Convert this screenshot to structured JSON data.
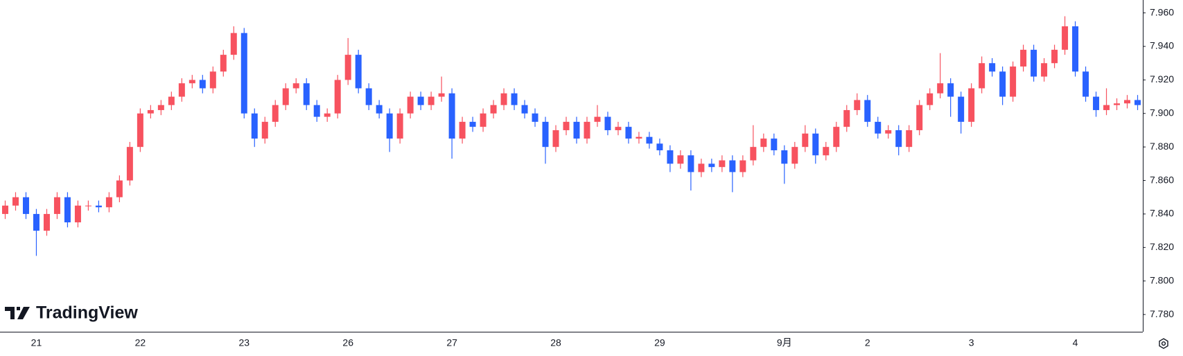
{
  "chart_data": {
    "type": "candlestick",
    "watermark": "TradingView",
    "up_color": "#f7525f",
    "down_color": "#2962ff",
    "ylim": [
      7.7697,
      7.9677
    ],
    "yticks": [
      {
        "value": 7.78,
        "label": "7.780"
      },
      {
        "value": 7.8,
        "label": "7.800"
      },
      {
        "value": 7.82,
        "label": "7.820"
      },
      {
        "value": 7.84,
        "label": "7.840"
      },
      {
        "value": 7.86,
        "label": "7.860"
      },
      {
        "value": 7.88,
        "label": "7.880"
      },
      {
        "value": 7.9,
        "label": "7.900"
      },
      {
        "value": 7.92,
        "label": "7.920"
      },
      {
        "value": 7.94,
        "label": "7.940"
      },
      {
        "value": 7.96,
        "label": "7.960"
      }
    ],
    "grid": false,
    "categories": [
      null,
      null,
      null,
      "21",
      null,
      null,
      null,
      null,
      null,
      null,
      null,
      null,
      null,
      "22",
      null,
      null,
      null,
      null,
      null,
      null,
      null,
      null,
      null,
      "23",
      null,
      null,
      null,
      null,
      null,
      null,
      null,
      null,
      null,
      "26",
      null,
      null,
      null,
      null,
      null,
      null,
      null,
      null,
      null,
      "27",
      null,
      null,
      null,
      null,
      null,
      null,
      null,
      null,
      null,
      "28",
      null,
      null,
      null,
      null,
      null,
      null,
      null,
      null,
      null,
      "29",
      null,
      null,
      null,
      null,
      null,
      null,
      null,
      null,
      null,
      null,
      null,
      "9月",
      null,
      null,
      null,
      null,
      null,
      null,
      null,
      "2",
      null,
      null,
      null,
      null,
      null,
      null,
      null,
      null,
      null,
      "3",
      null,
      null,
      null,
      null,
      null,
      null,
      null,
      null,
      null,
      "4",
      null,
      null,
      null,
      null,
      null,
      null
    ],
    "series": [
      {
        "open": [
          7.84,
          7.845,
          7.85,
          7.84,
          7.83,
          7.84,
          7.85,
          7.835,
          7.845,
          7.845,
          7.844,
          7.85,
          7.86,
          7.88,
          7.9,
          7.902,
          7.905,
          7.91,
          7.918,
          7.92,
          7.915,
          7.925,
          7.935,
          7.948,
          7.9,
          7.885,
          7.895,
          7.905,
          7.915,
          7.918,
          7.905,
          7.898,
          7.9,
          7.92,
          7.935,
          7.915,
          7.905,
          7.9,
          7.885,
          7.9,
          7.91,
          7.905,
          7.91,
          7.912,
          7.885,
          7.895,
          7.892,
          7.9,
          7.905,
          7.912,
          7.905,
          7.9,
          7.895,
          7.88,
          7.89,
          7.895,
          7.885,
          7.895,
          7.898,
          7.89,
          7.892,
          7.885,
          7.886,
          7.882,
          7.878,
          7.87,
          7.875,
          7.865,
          7.87,
          7.868,
          7.872,
          7.865,
          7.872,
          7.88,
          7.885,
          7.878,
          7.87,
          7.88,
          7.888,
          7.875,
          7.88,
          7.892,
          7.902,
          7.908,
          7.895,
          7.888,
          7.89,
          7.88,
          7.89,
          7.905,
          7.912,
          7.918,
          7.91,
          7.895,
          7.915,
          7.93,
          7.925,
          7.91,
          7.928,
          7.938,
          7.922,
          7.93,
          7.938,
          7.952,
          7.925,
          7.91,
          7.902,
          7.905,
          7.906,
          7.908
        ],
        "high": [
          7.848,
          7.853,
          7.853,
          7.843,
          7.843,
          7.853,
          7.853,
          7.848,
          7.848,
          7.848,
          7.853,
          7.863,
          7.883,
          7.903,
          7.905,
          7.908,
          7.913,
          7.921,
          7.923,
          7.923,
          7.928,
          7.938,
          7.952,
          7.951,
          7.903,
          7.898,
          7.908,
          7.918,
          7.921,
          7.921,
          7.908,
          7.903,
          7.923,
          7.945,
          7.938,
          7.918,
          7.908,
          7.903,
          7.903,
          7.913,
          7.913,
          7.913,
          7.922,
          7.915,
          7.898,
          7.898,
          7.903,
          7.908,
          7.915,
          7.915,
          7.908,
          7.903,
          7.898,
          7.893,
          7.898,
          7.898,
          7.898,
          7.905,
          7.901,
          7.895,
          7.895,
          7.889,
          7.889,
          7.885,
          7.881,
          7.878,
          7.878,
          7.873,
          7.873,
          7.875,
          7.875,
          7.875,
          7.893,
          7.888,
          7.888,
          7.881,
          7.883,
          7.893,
          7.891,
          7.883,
          7.895,
          7.905,
          7.912,
          7.911,
          7.898,
          7.893,
          7.893,
          7.893,
          7.908,
          7.915,
          7.936,
          7.921,
          7.913,
          7.918,
          7.934,
          7.933,
          7.928,
          7.931,
          7.941,
          7.941,
          7.933,
          7.941,
          7.958,
          7.955,
          7.928,
          7.913,
          7.915,
          7.909,
          7.911,
          7.911
        ],
        "low": [
          7.837,
          7.842,
          7.837,
          7.815,
          7.827,
          7.837,
          7.832,
          7.832,
          7.842,
          7.841,
          7.841,
          7.847,
          7.857,
          7.877,
          7.897,
          7.899,
          7.902,
          7.907,
          7.915,
          7.912,
          7.912,
          7.922,
          7.932,
          7.897,
          7.88,
          7.882,
          7.892,
          7.902,
          7.912,
          7.902,
          7.895,
          7.895,
          7.897,
          7.917,
          7.912,
          7.902,
          7.897,
          7.877,
          7.882,
          7.897,
          7.902,
          7.902,
          7.907,
          7.873,
          7.882,
          7.889,
          7.889,
          7.897,
          7.902,
          7.902,
          7.897,
          7.892,
          7.87,
          7.877,
          7.887,
          7.882,
          7.882,
          7.892,
          7.887,
          7.887,
          7.882,
          7.882,
          7.879,
          7.875,
          7.865,
          7.867,
          7.854,
          7.862,
          7.865,
          7.865,
          7.853,
          7.862,
          7.869,
          7.877,
          7.875,
          7.858,
          7.867,
          7.877,
          7.87,
          7.872,
          7.877,
          7.889,
          7.899,
          7.892,
          7.885,
          7.885,
          7.875,
          7.877,
          7.887,
          7.902,
          7.909,
          7.898,
          7.888,
          7.892,
          7.912,
          7.922,
          7.905,
          7.907,
          7.925,
          7.919,
          7.919,
          7.927,
          7.935,
          7.922,
          7.907,
          7.898,
          7.899,
          7.902,
          7.903,
          7.902
        ],
        "close": [
          7.845,
          7.85,
          7.84,
          7.83,
          7.84,
          7.85,
          7.835,
          7.845,
          7.845,
          7.844,
          7.85,
          7.86,
          7.88,
          7.9,
          7.902,
          7.905,
          7.91,
          7.918,
          7.92,
          7.915,
          7.925,
          7.935,
          7.948,
          7.9,
          7.885,
          7.895,
          7.905,
          7.915,
          7.918,
          7.905,
          7.898,
          7.9,
          7.92,
          7.935,
          7.915,
          7.905,
          7.9,
          7.885,
          7.9,
          7.91,
          7.905,
          7.91,
          7.912,
          7.885,
          7.895,
          7.892,
          7.9,
          7.905,
          7.912,
          7.905,
          7.9,
          7.895,
          7.88,
          7.89,
          7.895,
          7.885,
          7.895,
          7.898,
          7.89,
          7.892,
          7.885,
          7.886,
          7.882,
          7.878,
          7.87,
          7.875,
          7.865,
          7.87,
          7.868,
          7.872,
          7.865,
          7.872,
          7.88,
          7.885,
          7.878,
          7.87,
          7.88,
          7.888,
          7.875,
          7.88,
          7.892,
          7.902,
          7.908,
          7.895,
          7.888,
          7.89,
          7.88,
          7.89,
          7.905,
          7.912,
          7.918,
          7.91,
          7.895,
          7.915,
          7.93,
          7.925,
          7.91,
          7.928,
          7.938,
          7.922,
          7.93,
          7.938,
          7.952,
          7.925,
          7.91,
          7.902,
          7.905,
          7.906,
          7.908,
          7.905
        ]
      }
    ]
  }
}
